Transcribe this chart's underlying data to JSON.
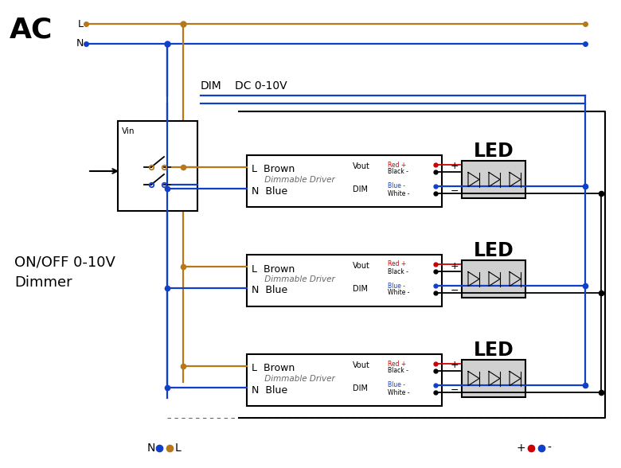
{
  "bg_color": "#ffffff",
  "orange": "#b87818",
  "blue": "#1040c8",
  "black": "#000000",
  "red": "#cc0000",
  "gray": "#666666",
  "ac_label": "AC",
  "L_label": "L",
  "N_label": "N",
  "dim_label": "DIM",
  "dc_label": "DC 0-10V",
  "vin_label": "Vin",
  "led_label": "LED",
  "dimmer_label1": "ON/OFF 0-10V",
  "dimmer_label2": "Dimmer",
  "legend_N": "N",
  "legend_L": "L",
  "legend_plus": "+",
  "legend_minus": "-",
  "fig_w": 7.8,
  "fig_h": 5.88,
  "dpi": 100
}
